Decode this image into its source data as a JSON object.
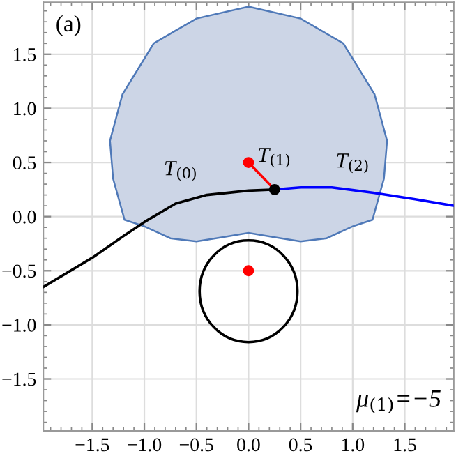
{
  "chart_data": {
    "type": "line",
    "xlim": [
      -1.97,
      1.97
    ],
    "ylim": [
      -1.98,
      1.98
    ],
    "xticks": [
      {
        "value": -1.5,
        "label": "−1.5"
      },
      {
        "value": -1.0,
        "label": "−1.0"
      },
      {
        "value": -0.5,
        "label": "−0.5"
      },
      {
        "value": 0,
        "label": "0.0"
      },
      {
        "value": 0.5,
        "label": "0.5"
      },
      {
        "value": 1.0,
        "label": "1.0"
      },
      {
        "value": 1.5,
        "label": "1.5"
      }
    ],
    "yticks": [
      {
        "value": -1.5,
        "label": "−1.5"
      },
      {
        "value": -1.0,
        "label": "−1.0"
      },
      {
        "value": -0.5,
        "label": "−0.5"
      },
      {
        "value": 0,
        "label": "0.0"
      },
      {
        "value": 0.5,
        "label": "0.5"
      },
      {
        "value": 1.0,
        "label": "1.0"
      },
      {
        "value": 1.5,
        "label": "1.5"
      }
    ],
    "grid": true,
    "series": [
      {
        "type": "area",
        "color": "#ccd5e6",
        "x": [
          0,
          0.5,
          0.91,
          1.21,
          1.33,
          1.3,
          1.19,
          1.0,
          0.75,
          0.5,
          0.25,
          0,
          -0.25,
          -0.5,
          -0.75,
          -1.0,
          -1.19,
          -1.3,
          -1.33,
          -1.21,
          -0.91,
          -0.5,
          0
        ],
        "values": [
          1.94,
          1.83,
          1.6,
          1.13,
          0.7,
          0.35,
          -0.03,
          -0.09,
          -0.2,
          -0.23,
          -0.19,
          -0.15,
          -0.19,
          -0.23,
          -0.2,
          -0.09,
          -0.03,
          0.35,
          0.7,
          1.13,
          1.6,
          1.83,
          1.94
        ]
      },
      {
        "color": "#000000",
        "x": [
          -1.97,
          -1.5,
          -1.2,
          -1.0,
          -0.7,
          -0.4,
          0,
          0.25
        ],
        "values": [
          -0.65,
          -0.38,
          -0.18,
          -0.05,
          0.12,
          0.2,
          0.24,
          0.25
        ]
      },
      {
        "color": "#0000ff",
        "x": [
          0.25,
          0.5,
          0.8,
          1.2,
          1.6,
          1.97
        ],
        "values": [
          0.25,
          0.27,
          0.27,
          0.22,
          0.16,
          0.1
        ]
      },
      {
        "color": "#ff0000",
        "x": [
          0,
          0.25
        ],
        "values": [
          0.5,
          0.25
        ]
      },
      {
        "type": "scatter",
        "color": "#ff0000",
        "x": [
          0,
          0
        ],
        "values": [
          0.5,
          -0.5
        ]
      },
      {
        "type": "scatter",
        "color": "#000000",
        "x": [
          0.25
        ],
        "values": [
          0.25
        ]
      }
    ],
    "annotations": [
      "(a)",
      "μ$_{(1)}$=−5",
      "T$_{(0)}$",
      "T$_{(1)}$",
      "T$_{(2)}$"
    ]
  }
}
